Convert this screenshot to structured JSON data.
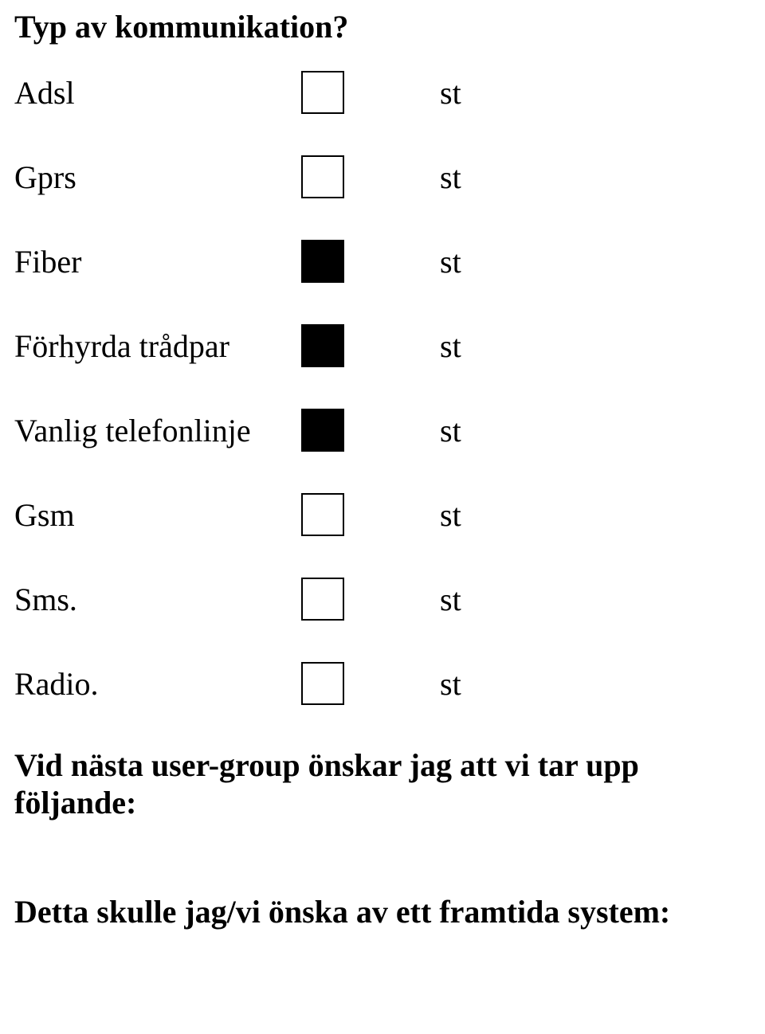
{
  "title": "Typ av kommunikation?",
  "unit": "st",
  "items": [
    {
      "label": "Adsl",
      "checked": false
    },
    {
      "label": "Gprs",
      "checked": false
    },
    {
      "label": "Fiber",
      "checked": true
    },
    {
      "label": "Förhyrda trådpar",
      "checked": true
    },
    {
      "label": "Vanlig telefonlinje",
      "checked": true
    },
    {
      "label": "Gsm",
      "checked": false
    },
    {
      "label": "Sms.",
      "checked": false
    },
    {
      "label": "Radio.",
      "checked": false
    }
  ],
  "question1": "Vid nästa user-group önskar jag att vi tar upp följande:",
  "question2": "Detta skulle jag/vi önska av ett framtida system:"
}
